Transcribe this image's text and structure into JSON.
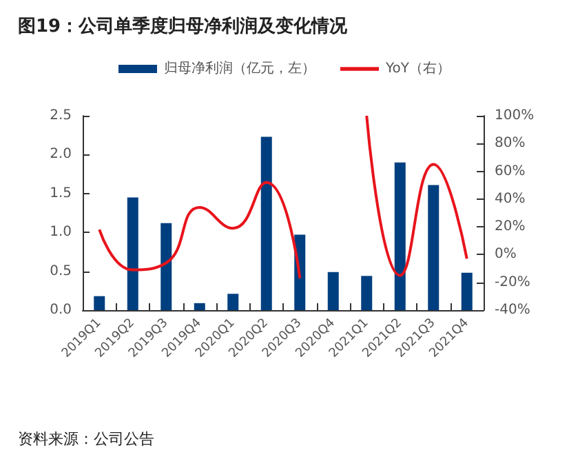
{
  "chart_data": {
    "type": "bar",
    "title": "图19：公司单季度归母净利润及变化情况",
    "categories": [
      "2019Q1",
      "2019Q2",
      "2019Q3",
      "2019Q4",
      "2020Q1",
      "2020Q2",
      "2020Q3",
      "2020Q4",
      "2021Q1",
      "2021Q2",
      "2021Q3",
      "2021Q4"
    ],
    "series": [
      {
        "name": "归母净利润（亿元，左）",
        "color": "#003f7f",
        "values": [
          0.18,
          1.45,
          1.12,
          0.09,
          0.21,
          2.23,
          0.97,
          0.49,
          0.44,
          1.9,
          1.61,
          0.48
        ]
      },
      {
        "name": "YoY（右）",
        "type": "line",
        "axis": "y2",
        "color": "#e8141c",
        "values": [
          18,
          -11,
          -6,
          34,
          19,
          52,
          -17,
          null,
          100,
          -15,
          65,
          -3
        ]
      }
    ],
    "ylim": [
      0,
      2.5
    ],
    "yticks": [
      {
        "value": 0,
        "label": "0.0"
      },
      {
        "value": 0.5,
        "label": "0.5"
      },
      {
        "value": 1,
        "label": "1.0"
      },
      {
        "value": 1.5,
        "label": "1.5"
      },
      {
        "value": 2,
        "label": "2.0"
      },
      {
        "value": 2.5,
        "label": "2.5"
      }
    ],
    "y2lim": [
      -40,
      100
    ],
    "y2ticks": [
      {
        "value": -40,
        "label": "-40%"
      },
      {
        "value": -20,
        "label": "-20%"
      },
      {
        "value": 0,
        "label": "0%"
      },
      {
        "value": 20,
        "label": "20%"
      },
      {
        "value": 40,
        "label": "40%"
      },
      {
        "value": 60,
        "label": "60%"
      },
      {
        "value": 80,
        "label": "80%"
      },
      {
        "value": 100,
        "label": "100%"
      }
    ],
    "legend": "top",
    "annotations": [
      "资料来源：公司公告"
    ]
  }
}
